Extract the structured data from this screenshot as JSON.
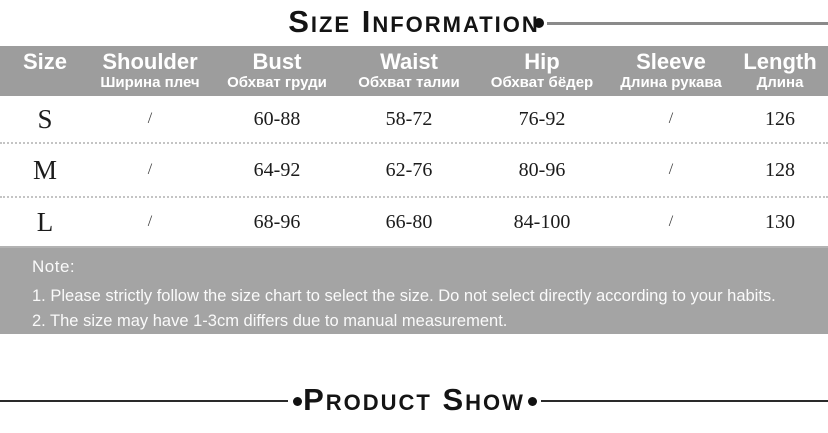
{
  "titles": {
    "size_info": "Size Information",
    "product_show": "Product Show"
  },
  "size_table": {
    "headers": [
      {
        "en": "Size",
        "ru": ""
      },
      {
        "en": "Shoulder",
        "ru": "Ширина плеч"
      },
      {
        "en": "Bust",
        "ru": "Обхват груди"
      },
      {
        "en": "Waist",
        "ru": "Обхват талии"
      },
      {
        "en": "Hip",
        "ru": "Обхват бёдер"
      },
      {
        "en": "Sleeve",
        "ru": "Длина рукава"
      },
      {
        "en": "Length",
        "ru": "Длина"
      }
    ],
    "rows": [
      [
        "S",
        "/",
        "60-88",
        "58-72",
        "76-92",
        "/",
        "126"
      ],
      [
        "M",
        "/",
        "64-92",
        "62-76",
        "80-96",
        "/",
        "128"
      ],
      [
        "L",
        "/",
        "68-96",
        "66-80",
        "84-100",
        "/",
        "130"
      ]
    ]
  },
  "note": {
    "label": "Note:",
    "lines": [
      "1. Please strictly follow the size chart to select the size. Do not select directly according to your habits.",
      "2. The size may have 1-3cm differs due to manual measurement."
    ]
  },
  "colors": {
    "header_bg": "#9d9d9d",
    "header_text": "#ffffff",
    "note_bg": "#a4a4a4",
    "body_text": "#1c1c1c",
    "divider": "#c4c4c4",
    "deco_line_top": "#8a8a8a",
    "deco_line_bottom": "#2a2a2a"
  }
}
